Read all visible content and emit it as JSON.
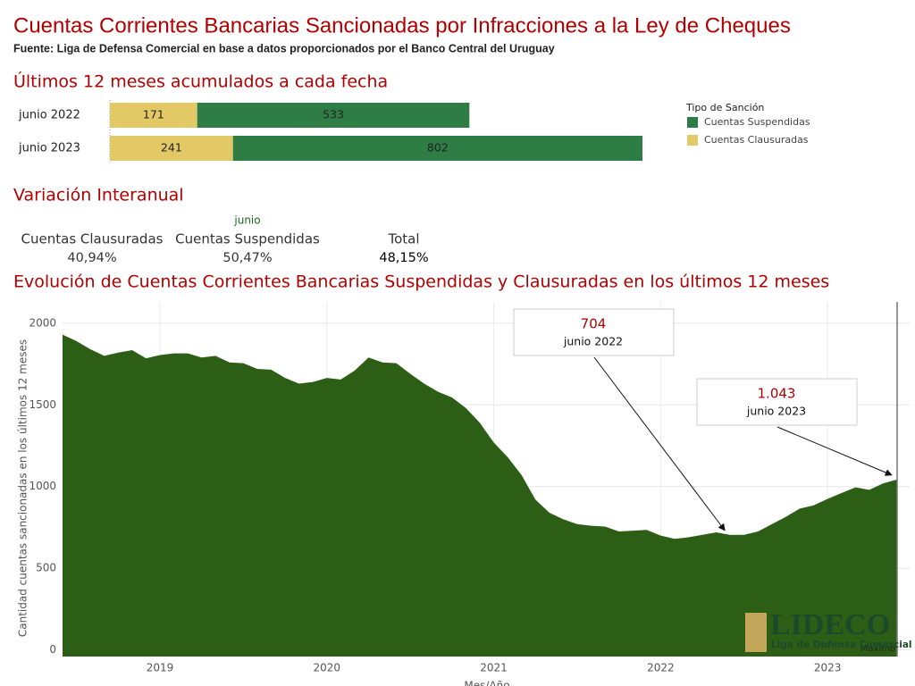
{
  "header": {
    "title": "Cuentas Corrientes Bancarias Sancionadas por Infracciones a la Ley de Cheques",
    "source": "Fuente: Liga de Defensa Comercial en base a datos proporcionados por el Banco Central del Uruguay"
  },
  "chart_data": [
    {
      "type": "bar",
      "orientation": "horizontal",
      "stacked": true,
      "title": "Últimos 12 meses acumulados a cada fecha",
      "categories": [
        "junio 2022",
        "junio 2023"
      ],
      "legend_title": "Tipo de Sanción",
      "series": [
        {
          "name": "Cuentas Suspendidas",
          "color": "#2e7d45",
          "values": [
            533,
            802
          ]
        },
        {
          "name": "Cuentas Clausuradas",
          "color": "#e3c965",
          "values": [
            171,
            241
          ]
        }
      ]
    },
    {
      "type": "area",
      "title": "Evolución de Cuentas Corrientes Bancarias Suspendidas y Clausuradas en los últimos 12 meses",
      "x_label": "Mes/Año",
      "y_label": "Cantidad cuentas sancionadas en los últimos 12 meses",
      "color": "#2d5e16",
      "x": [
        "2018-06",
        "2018-07",
        "2018-08",
        "2018-09",
        "2018-10",
        "2018-11",
        "2018-12",
        "2019-01",
        "2019-02",
        "2019-03",
        "2019-04",
        "2019-05",
        "2019-06",
        "2019-07",
        "2019-08",
        "2019-09",
        "2019-10",
        "2019-11",
        "2019-12",
        "2020-01",
        "2020-02",
        "2020-03",
        "2020-04",
        "2020-05",
        "2020-06",
        "2020-07",
        "2020-08",
        "2020-09",
        "2020-10",
        "2020-11",
        "2020-12",
        "2021-01",
        "2021-02",
        "2021-03",
        "2021-04",
        "2021-05",
        "2021-06",
        "2021-07",
        "2021-08",
        "2021-09",
        "2021-10",
        "2021-11",
        "2021-12",
        "2022-01",
        "2022-02",
        "2022-03",
        "2022-04",
        "2022-05",
        "2022-06",
        "2022-07",
        "2022-08",
        "2022-09",
        "2022-10",
        "2022-11",
        "2022-12",
        "2023-01",
        "2023-02",
        "2023-03",
        "2023-04",
        "2023-05",
        "2023-06"
      ],
      "values": [
        1930,
        1890,
        1840,
        1800,
        1820,
        1835,
        1785,
        1805,
        1815,
        1815,
        1790,
        1800,
        1760,
        1755,
        1720,
        1715,
        1665,
        1630,
        1640,
        1665,
        1655,
        1710,
        1790,
        1760,
        1755,
        1690,
        1630,
        1580,
        1545,
        1480,
        1390,
        1270,
        1180,
        1070,
        920,
        840,
        800,
        770,
        760,
        755,
        725,
        730,
        735,
        700,
        680,
        690,
        705,
        720,
        704,
        705,
        725,
        770,
        815,
        865,
        885,
        925,
        960,
        995,
        980,
        1020,
        1043
      ],
      "ylim": [
        -40,
        2130
      ],
      "yticks": [
        0,
        500,
        1000,
        1500,
        2000
      ],
      "xticks": [
        {
          "value": "2019-01",
          "label": "2019"
        },
        {
          "value": "2020-01",
          "label": "2020"
        },
        {
          "value": "2021-01",
          "label": "2021"
        },
        {
          "value": "2022-01",
          "label": "2022"
        },
        {
          "value": "2023-01",
          "label": "2023"
        }
      ],
      "grid": true,
      "annotations": [
        {
          "x": "2022-06",
          "value": 704,
          "value_label": "704",
          "text": "junio 2022"
        },
        {
          "x": "2023-06",
          "value": 1043,
          "value_label": "1.043",
          "text": "junio 2023"
        }
      ],
      "reference_label": "Máximo"
    }
  ],
  "variation": {
    "title": "Variación Interanual",
    "period": "junio",
    "items": [
      {
        "name": "Cuentas Clausuradas",
        "value": 40.94,
        "label": "40,94%"
      },
      {
        "name": "Cuentas Suspendidas",
        "value": 50.47,
        "label": "50,47%"
      },
      {
        "name": "Total",
        "value": 48.15,
        "label": "48,15%"
      }
    ]
  },
  "logo": {
    "name": "LIDECO",
    "subtitle": "Liga de Defensa Comercial"
  }
}
